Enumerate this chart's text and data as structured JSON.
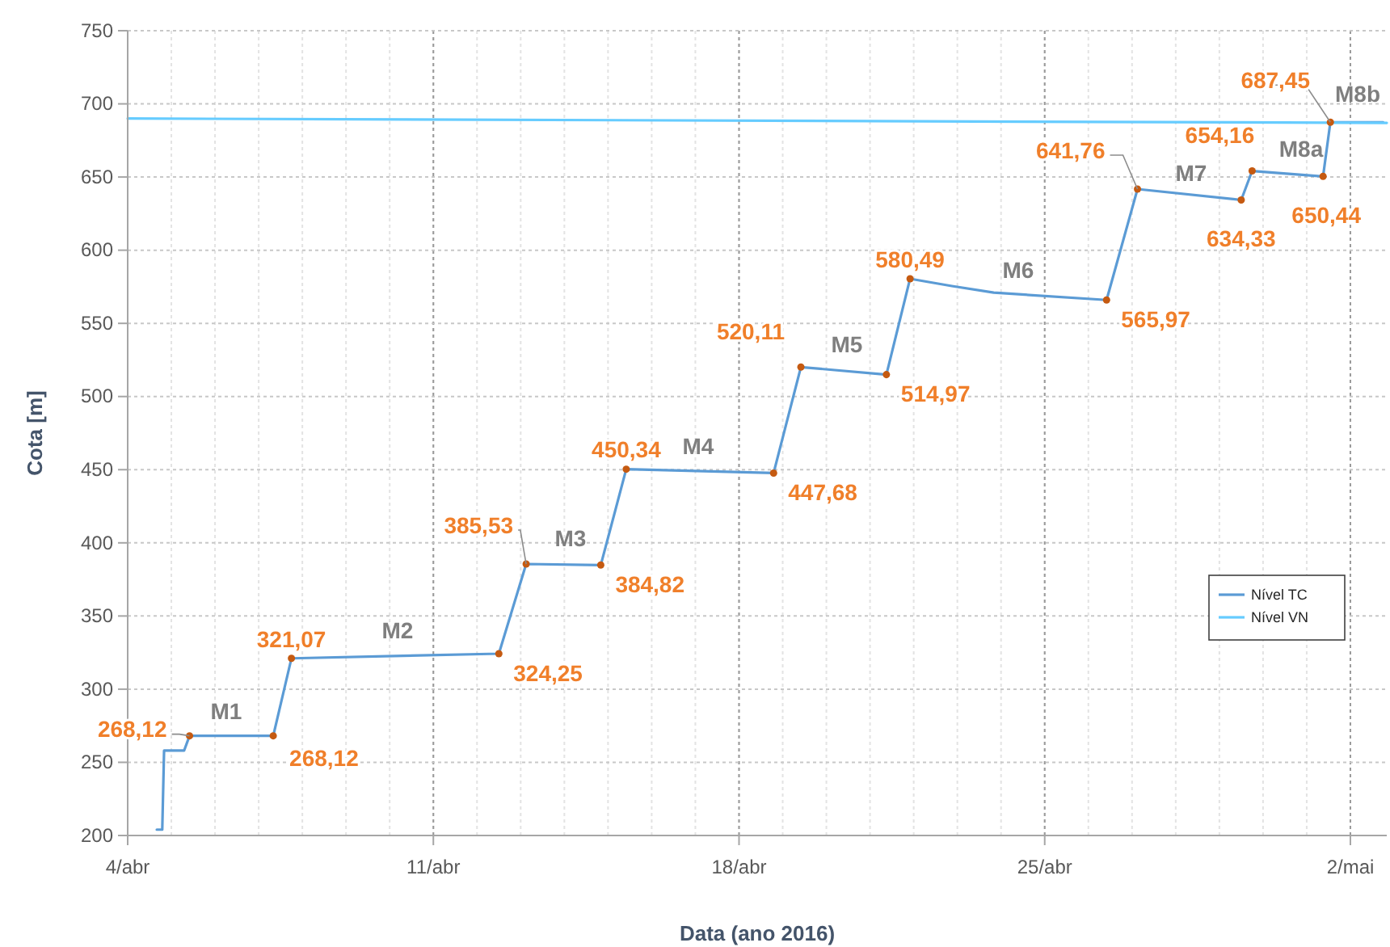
{
  "chart_data": {
    "type": "line",
    "xlabel": "Data (ano 2016)",
    "ylabel": "Cota [m]",
    "xlim": [
      "2016-04-04",
      "2016-05-02T20:00"
    ],
    "xticks": [
      {
        "value": "2016-04-04",
        "label": "4/abr"
      },
      {
        "value": "2016-04-11",
        "label": "11/abr"
      },
      {
        "value": "2016-04-18",
        "label": "18/abr"
      },
      {
        "value": "2016-04-25",
        "label": "25/abr"
      },
      {
        "value": "2016-05-02",
        "label": "2/mai"
      }
    ],
    "ylim": [
      200,
      750
    ],
    "yticks": [
      200,
      250,
      300,
      350,
      400,
      450,
      500,
      550,
      600,
      650,
      700,
      750
    ],
    "grid": true,
    "legend": "right",
    "series": [
      {
        "name": "Nível TC",
        "color": "#5b9bd5",
        "x": [
          "2016-04-04T16:00",
          "2016-04-04T19:00",
          "2016-04-04T20:00",
          "2016-04-05T07:00",
          "2016-04-05T10:00",
          "2016-04-07T08:00",
          "2016-04-07T18:00",
          "2016-04-12T12:00",
          "2016-04-13T03:00",
          "2016-04-14T20:00",
          "2016-04-15T10:00",
          "2016-04-18T19:00",
          "2016-04-19T10:00",
          "2016-04-21T09:00",
          "2016-04-21T22:00",
          "2016-04-22T21:00",
          "2016-04-23T20:00",
          "2016-04-26T10:00",
          "2016-04-27T03:00",
          "2016-04-29T12:00",
          "2016-04-29T18:00",
          "2016-05-01T09:00",
          "2016-05-01T13:00",
          "2016-05-02T18:00"
        ],
        "values": [
          204,
          204,
          258,
          258,
          268.12,
          268.12,
          321.07,
          324.25,
          385.53,
          384.82,
          450.34,
          447.68,
          520.11,
          514.97,
          580.49,
          575.5,
          571,
          565.97,
          641.76,
          634.33,
          654.16,
          650.44,
          687.45,
          687.45
        ]
      },
      {
        "name": "Nível VN",
        "color": "#66ccff",
        "x": [
          "2016-04-04",
          "2016-05-02T20:00"
        ],
        "values": [
          690,
          687
        ]
      },
      {
        "type": "scatter",
        "color": "#c55a11",
        "marker": "circle",
        "x": [
          "2016-04-05T10:00",
          "2016-04-07T08:00",
          "2016-04-07T18:00",
          "2016-04-12T12:00",
          "2016-04-13T03:00",
          "2016-04-14T20:00",
          "2016-04-15T10:00",
          "2016-04-18T19:00",
          "2016-04-19T10:00",
          "2016-04-21T09:00",
          "2016-04-21T22:00",
          "2016-04-26T10:00",
          "2016-04-27T03:00",
          "2016-04-29T12:00",
          "2016-04-29T18:00",
          "2016-05-01T09:00",
          "2016-05-01T13:00"
        ],
        "values": [
          268.12,
          268.12,
          321.07,
          324.25,
          385.53,
          384.82,
          450.34,
          447.68,
          520.11,
          514.97,
          580.49,
          565.97,
          641.76,
          634.33,
          654.16,
          650.44,
          687.45
        ],
        "value_labels": [
          "268,12",
          "268,12",
          "321,07",
          "324,25",
          "385,53",
          "384,82",
          "450,34",
          "447,68",
          "520,11",
          "514,97",
          "580,49",
          "565,97",
          "641,76",
          "634,33",
          "654,16",
          "650,44",
          "687,45"
        ]
      }
    ],
    "annotations": [
      "M1",
      "M2",
      "M3",
      "M4",
      "M5",
      "M6",
      "M7",
      "M8a",
      "M8b"
    ]
  }
}
